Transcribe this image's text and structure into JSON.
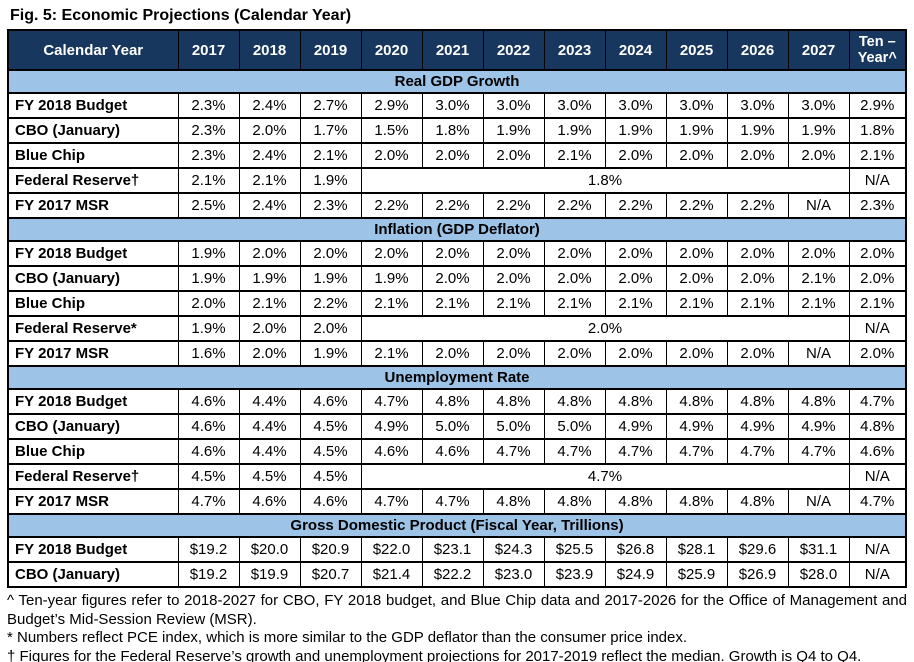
{
  "title": "Fig. 5: Economic Projections (Calendar Year)",
  "colors": {
    "header_bg": "#17375E",
    "header_text": "#FFFFFF",
    "section_bg": "#9DC3E6",
    "border": "#000000"
  },
  "table": {
    "header": {
      "label": "Calendar Year",
      "years": [
        "2017",
        "2018",
        "2019",
        "2020",
        "2021",
        "2022",
        "2023",
        "2024",
        "2025",
        "2026",
        "2027"
      ],
      "ten_year": "Ten –\nYear^"
    },
    "sections": [
      {
        "title": "Real GDP Growth",
        "rows": [
          {
            "label": "FY 2018 Budget",
            "cells": [
              "2.3%",
              "2.4%",
              "2.7%",
              "2.9%",
              "3.0%",
              "3.0%",
              "3.0%",
              "3.0%",
              "3.0%",
              "3.0%",
              "3.0%",
              "2.9%"
            ]
          },
          {
            "label": "CBO (January)",
            "cells": [
              "2.3%",
              "2.0%",
              "1.7%",
              "1.5%",
              "1.8%",
              "1.9%",
              "1.9%",
              "1.9%",
              "1.9%",
              "1.9%",
              "1.9%",
              "1.8%"
            ]
          },
          {
            "label": "Blue Chip",
            "cells": [
              "2.3%",
              "2.4%",
              "2.1%",
              "2.0%",
              "2.0%",
              "2.0%",
              "2.1%",
              "2.0%",
              "2.0%",
              "2.0%",
              "2.0%",
              "2.1%"
            ]
          },
          {
            "label": "Federal Reserve†",
            "cells": [
              "2.1%",
              "2.1%",
              "1.9%",
              {
                "v": "1.8%",
                "span": 8
              },
              "N/A"
            ]
          },
          {
            "label": "FY 2017 MSR",
            "cells": [
              "2.5%",
              "2.4%",
              "2.3%",
              "2.2%",
              "2.2%",
              "2.2%",
              "2.2%",
              "2.2%",
              "2.2%",
              "2.2%",
              "N/A",
              "2.3%"
            ]
          }
        ]
      },
      {
        "title": "Inflation (GDP Deflator)",
        "rows": [
          {
            "label": "FY 2018 Budget",
            "cells": [
              "1.9%",
              "2.0%",
              "2.0%",
              "2.0%",
              "2.0%",
              "2.0%",
              "2.0%",
              "2.0%",
              "2.0%",
              "2.0%",
              "2.0%",
              "2.0%"
            ]
          },
          {
            "label": "CBO (January)",
            "cells": [
              "1.9%",
              "1.9%",
              "1.9%",
              "1.9%",
              "2.0%",
              "2.0%",
              "2.0%",
              "2.0%",
              "2.0%",
              "2.0%",
              "2.1%",
              "2.0%"
            ]
          },
          {
            "label": "Blue Chip",
            "cells": [
              "2.0%",
              "2.1%",
              "2.2%",
              "2.1%",
              "2.1%",
              "2.1%",
              "2.1%",
              "2.1%",
              "2.1%",
              "2.1%",
              "2.1%",
              "2.1%"
            ]
          },
          {
            "label": "Federal Reserve*",
            "cells": [
              "1.9%",
              "2.0%",
              "2.0%",
              {
                "v": "2.0%",
                "span": 8
              },
              "N/A"
            ]
          },
          {
            "label": "FY 2017 MSR",
            "cells": [
              "1.6%",
              "2.0%",
              "1.9%",
              "2.1%",
              "2.0%",
              "2.0%",
              "2.0%",
              "2.0%",
              "2.0%",
              "2.0%",
              "N/A",
              "2.0%"
            ]
          }
        ]
      },
      {
        "title": "Unemployment Rate",
        "rows": [
          {
            "label": "FY 2018 Budget",
            "cells": [
              "4.6%",
              "4.4%",
              "4.6%",
              "4.7%",
              "4.8%",
              "4.8%",
              "4.8%",
              "4.8%",
              "4.8%",
              "4.8%",
              "4.8%",
              "4.7%"
            ]
          },
          {
            "label": "CBO (January)",
            "cells": [
              "4.6%",
              "4.4%",
              "4.5%",
              "4.9%",
              "5.0%",
              "5.0%",
              "5.0%",
              "4.9%",
              "4.9%",
              "4.9%",
              "4.9%",
              "4.8%"
            ]
          },
          {
            "label": "Blue Chip",
            "cells": [
              "4.6%",
              "4.4%",
              "4.5%",
              "4.6%",
              "4.6%",
              "4.7%",
              "4.7%",
              "4.7%",
              "4.7%",
              "4.7%",
              "4.7%",
              "4.6%"
            ]
          },
          {
            "label": "Federal Reserve†",
            "cells": [
              "4.5%",
              "4.5%",
              "4.5%",
              {
                "v": "4.7%",
                "span": 8
              },
              "N/A"
            ]
          },
          {
            "label": "FY 2017 MSR",
            "cells": [
              "4.7%",
              "4.6%",
              "4.6%",
              "4.7%",
              "4.7%",
              "4.8%",
              "4.8%",
              "4.8%",
              "4.8%",
              "4.8%",
              "N/A",
              "4.7%"
            ]
          }
        ]
      },
      {
        "title": "Gross Domestic Product (Fiscal Year, Trillions)",
        "rows": [
          {
            "label": "FY 2018 Budget",
            "cells": [
              "$19.2",
              "$20.0",
              "$20.9",
              "$22.0",
              "$23.1",
              "$24.3",
              "$25.5",
              "$26.8",
              "$28.1",
              "$29.6",
              "$31.1",
              "N/A"
            ]
          },
          {
            "label": "CBO (January)",
            "cells": [
              "$19.2",
              "$19.9",
              "$20.7",
              "$21.4",
              "$22.2",
              "$23.0",
              "$23.9",
              "$24.9",
              "$25.9",
              "$26.9",
              "$28.0",
              "N/A"
            ]
          }
        ]
      }
    ]
  },
  "footnotes": [
    "^ Ten-year figures refer to 2018-2027 for CBO, FY 2018 budget, and Blue Chip data and 2017-2026 for the Office of Management and Budget’s Mid-Session Review (MSR).",
    "* Numbers reflect PCE index, which is more similar to the GDP deflator than the consumer price index.",
    "† Figures for the Federal Reserve’s growth and unemployment projections for 2017-2019 reflect the median. Growth is Q4 to Q4."
  ]
}
